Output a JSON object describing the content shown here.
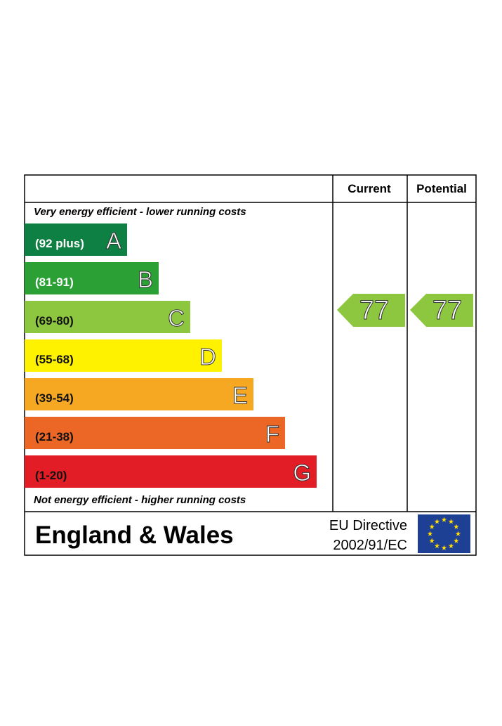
{
  "header": {
    "current": "Current",
    "potential": "Potential"
  },
  "top_note": "Very energy efficient - lower running costs",
  "bottom_note": "Not energy efficient - higher running costs",
  "bands": [
    {
      "range": "(92 plus)",
      "letter": "A",
      "color": "#0f8044",
      "text_color": "#ffffff"
    },
    {
      "range": "(81-91)",
      "letter": "B",
      "color": "#2aa035",
      "text_color": "#ffffff"
    },
    {
      "range": "(69-80)",
      "letter": "C",
      "color": "#8dc63f",
      "text_color": "#111111"
    },
    {
      "range": "(55-68)",
      "letter": "D",
      "color": "#fff200",
      "text_color": "#111111"
    },
    {
      "range": "(39-54)",
      "letter": "E",
      "color": "#f7a823",
      "text_color": "#111111"
    },
    {
      "range": "(21-38)",
      "letter": "F",
      "color": "#ec6625",
      "text_color": "#111111"
    },
    {
      "range": "(1-20)",
      "letter": "G",
      "color": "#e31d25",
      "text_color": "#111111"
    }
  ],
  "current": {
    "value": "77",
    "color": "#8dc63f"
  },
  "potential": {
    "value": "77",
    "color": "#8dc63f"
  },
  "footer": {
    "region": "England & Wales",
    "directive_line1": "EU Directive",
    "directive_line2": "2002/91/EC"
  }
}
